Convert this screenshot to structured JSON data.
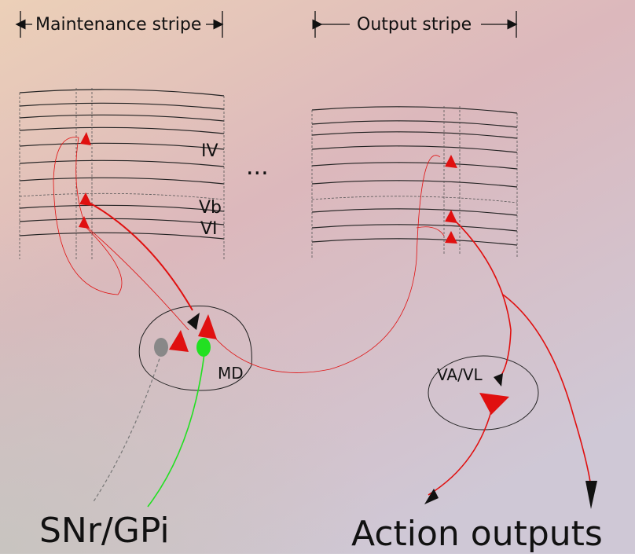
{
  "header": {
    "maintenance": "Maintenance stripe",
    "output": "Output stripe"
  },
  "layers": {
    "iv": "IV",
    "vb": "Vb",
    "vi": "VI"
  },
  "ellipsis": "...",
  "nuclei": {
    "md": "MD",
    "vavl": "VA/VL"
  },
  "labels": {
    "snr": "SNr/GPi",
    "action": "Action outputs"
  }
}
